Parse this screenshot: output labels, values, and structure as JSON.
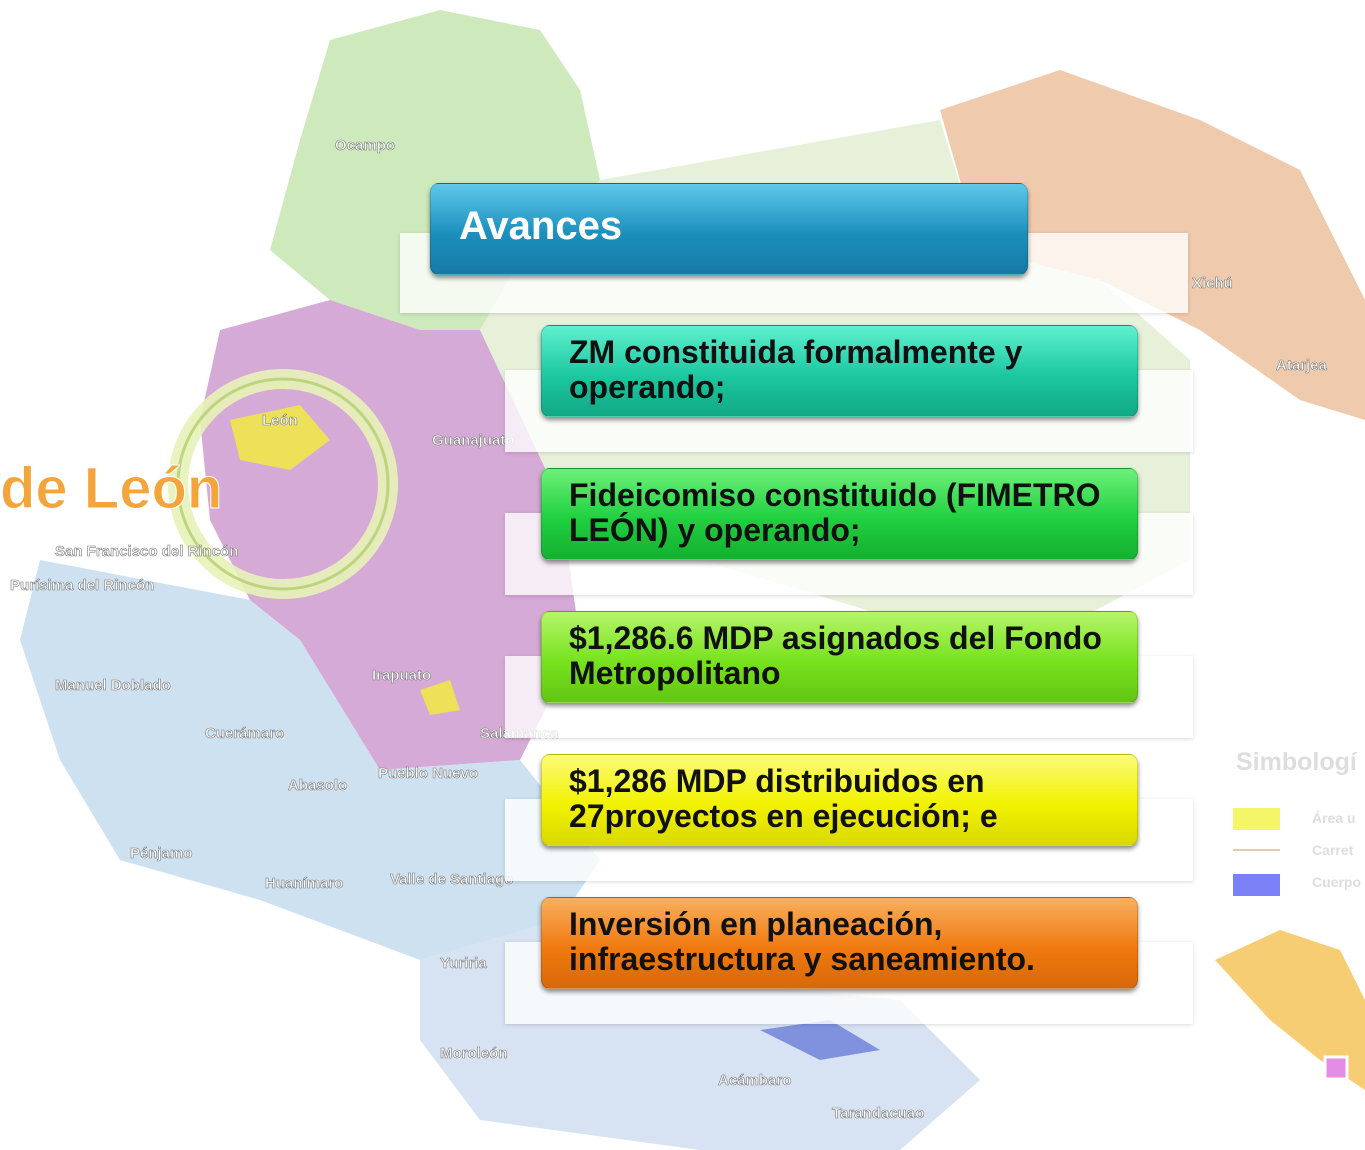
{
  "header": {
    "title": "Avances"
  },
  "items": [
    {
      "text": "ZM constituida formalmente y operando;"
    },
    {
      "text": "Fideicomiso constituido (FIMETRO LEÓN) y operando;"
    },
    {
      "text": "$1,286.6 MDP asignados del Fondo Metropolitano"
    },
    {
      "text": "$1,286 MDP distribuidos en 27proyectos en ejecución; e"
    },
    {
      "text": "Inversión en planeación, infraestructura y saneamiento."
    }
  ],
  "map": {
    "highlight": "de León",
    "labels": [
      "Ocampo",
      "León",
      "Guanajuato",
      "San Francisco del Rincón",
      "Purísima del Rincón",
      "Manuel Doblado",
      "Cuerámaro",
      "Irapuato",
      "Abasolo",
      "Pueblo Nuevo",
      "Pénjamo",
      "Huanímaro",
      "Valle de Santiago",
      "Yuriria",
      "Moroleón",
      "Acámbaro",
      "Tarandacuao",
      "Xichú",
      "Atarjea",
      "Salamanca"
    ]
  },
  "legend": {
    "title": "Simbologí",
    "items": [
      "Área u",
      "Carret",
      "Cuerpo"
    ]
  }
}
